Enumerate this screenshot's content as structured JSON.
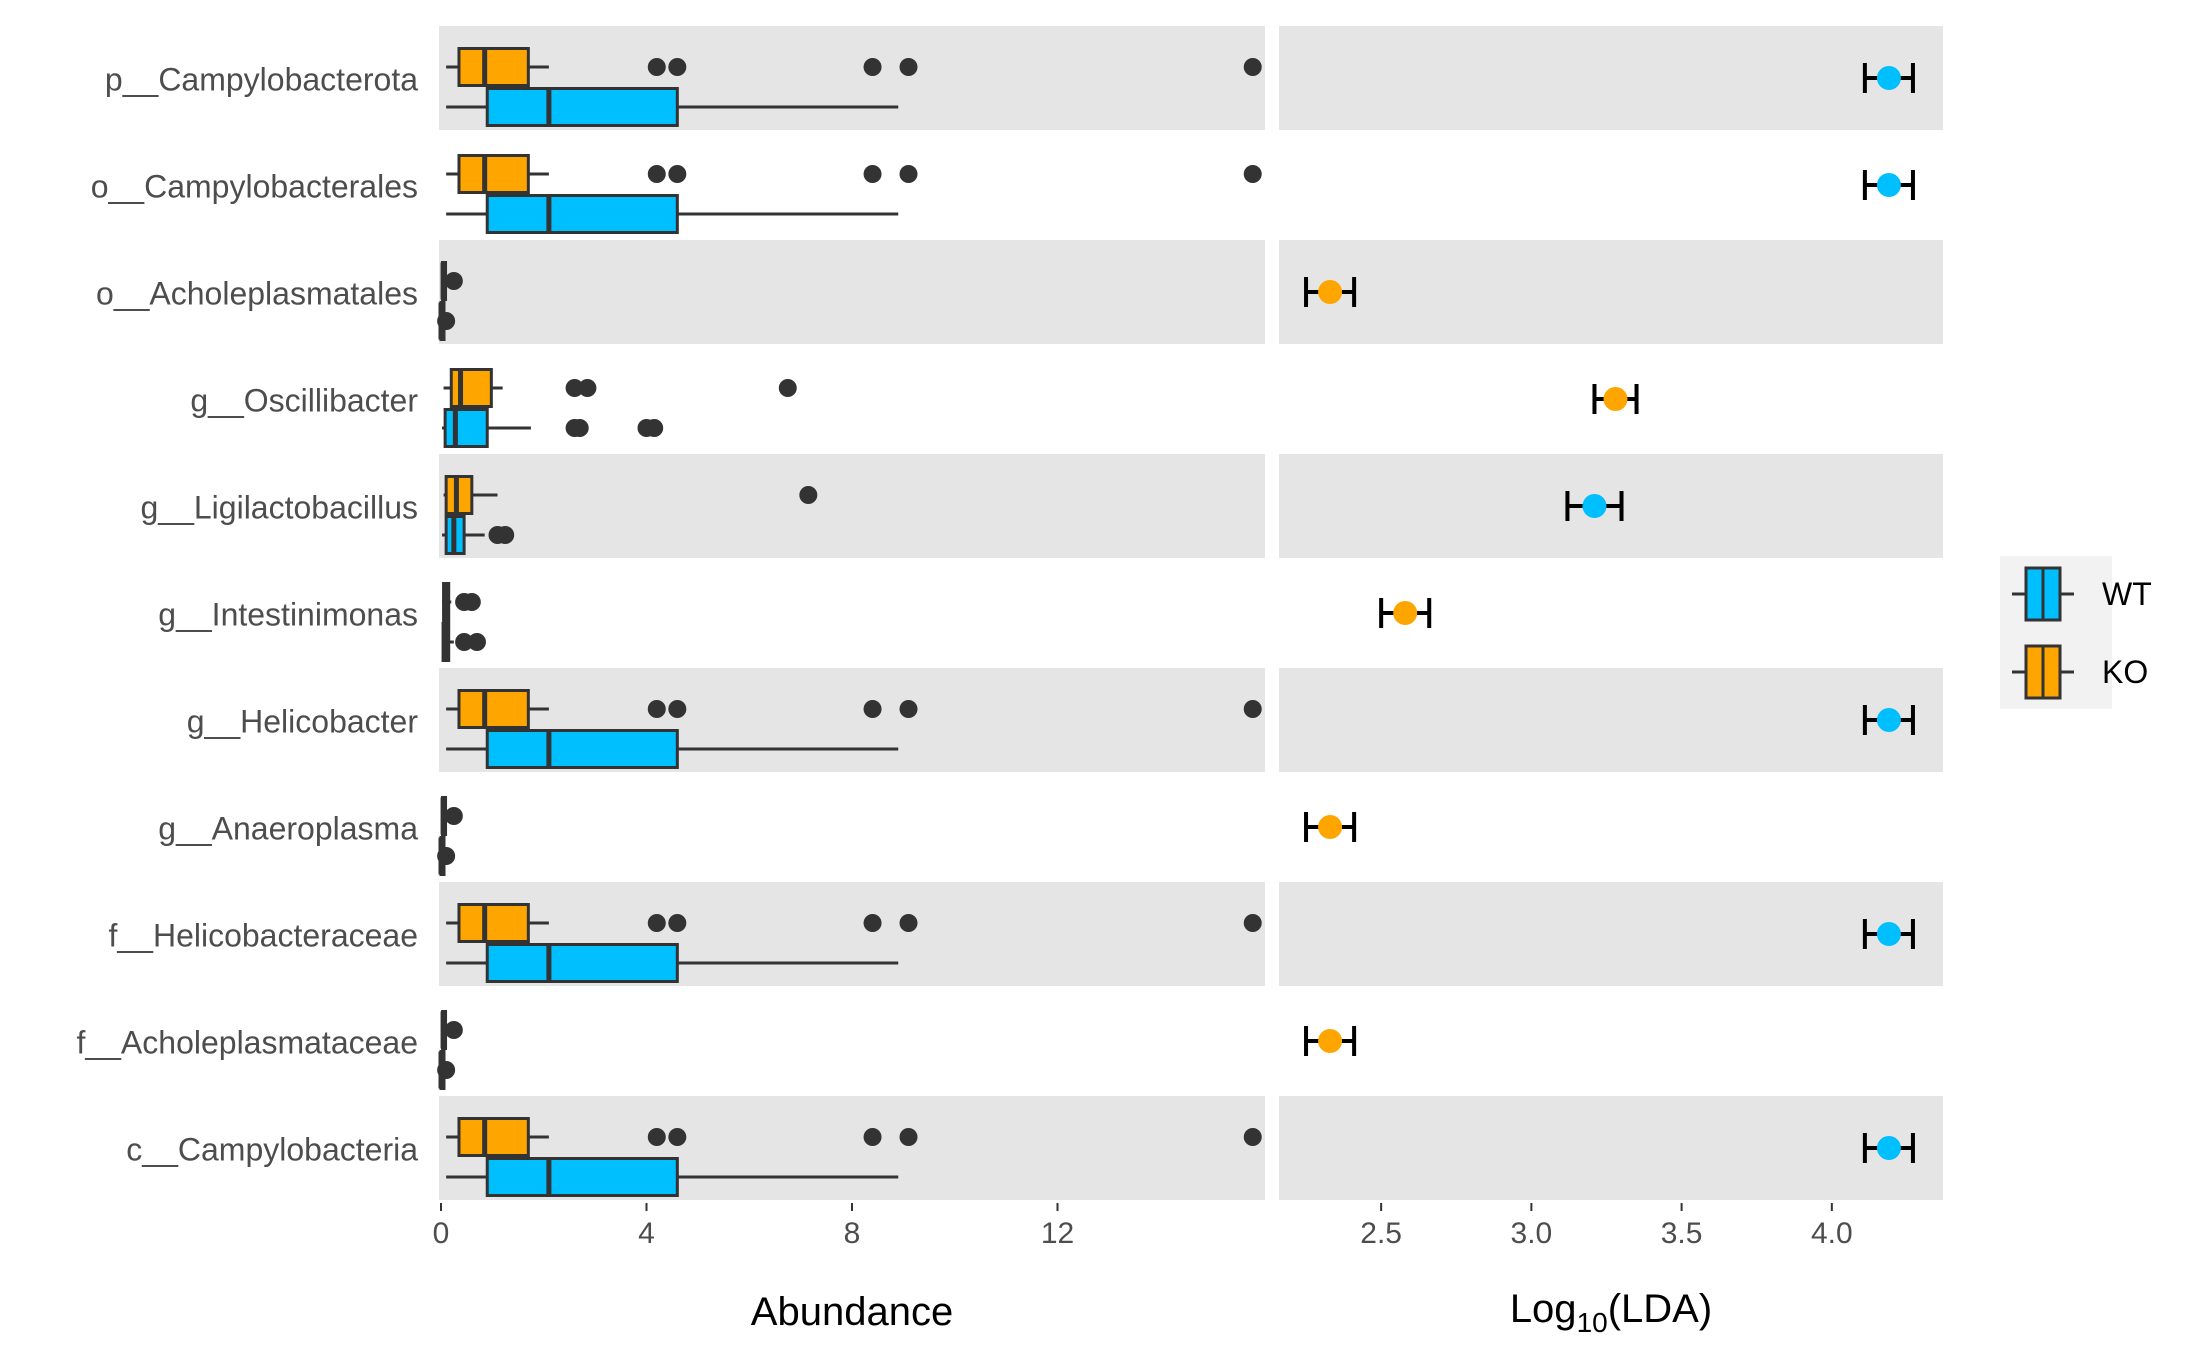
{
  "colors": {
    "WT": "#00BFFF",
    "KO": "#FFA500",
    "panel_band": "#E5E5E5",
    "outline": "#333333",
    "outlier": "#333333",
    "errorbar": "#000000"
  },
  "chart_data": [
    {
      "type": "boxplot",
      "panel": "left",
      "xlabel": "Abundance",
      "xlim": [
        0,
        16
      ],
      "xticks": [
        0,
        4,
        8,
        12
      ],
      "categories": [
        "p__Campylobacterota",
        "o__Campylobacterales",
        "o__Acholeplasmatales",
        "g__Oscillibacter",
        "g__Ligilactobacillus",
        "g__Intestinimonas",
        "g__Helicobacter",
        "g__Anaeroplasma",
        "f__Helicobacteraceae",
        "f__Acholeplasmataceae",
        "c__Campylobacteria"
      ],
      "series": [
        {
          "name": "KO",
          "boxes": [
            {
              "wlo": 0.1,
              "q1": 0.35,
              "med": 0.85,
              "q3": 1.7,
              "whi": 2.1,
              "outliers": [
                4.2,
                4.6,
                8.4,
                9.1,
                15.8
              ]
            },
            {
              "wlo": 0.1,
              "q1": 0.35,
              "med": 0.85,
              "q3": 1.7,
              "whi": 2.1,
              "outliers": [
                4.2,
                4.6,
                8.4,
                9.1,
                15.8
              ]
            },
            {
              "wlo": 0.02,
              "q1": 0.03,
              "med": 0.04,
              "q3": 0.05,
              "whi": 0.06,
              "outliers": [
                0.25
              ]
            },
            {
              "wlo": 0.05,
              "q1": 0.2,
              "med": 0.38,
              "q3": 0.98,
              "whi": 1.2,
              "outliers": [
                2.6,
                2.85,
                6.75
              ]
            },
            {
              "wlo": 0.05,
              "q1": 0.1,
              "med": 0.3,
              "q3": 0.6,
              "whi": 1.1,
              "outliers": [
                7.15
              ]
            },
            {
              "wlo": 0.02,
              "q1": 0.05,
              "med": 0.1,
              "q3": 0.15,
              "whi": 0.2,
              "outliers": [
                0.45,
                0.6
              ]
            },
            {
              "wlo": 0.1,
              "q1": 0.35,
              "med": 0.85,
              "q3": 1.7,
              "whi": 2.1,
              "outliers": [
                4.2,
                4.6,
                8.4,
                9.1,
                15.8
              ]
            },
            {
              "wlo": 0.02,
              "q1": 0.03,
              "med": 0.04,
              "q3": 0.05,
              "whi": 0.06,
              "outliers": [
                0.25
              ]
            },
            {
              "wlo": 0.1,
              "q1": 0.35,
              "med": 0.85,
              "q3": 1.7,
              "whi": 2.1,
              "outliers": [
                4.2,
                4.6,
                8.4,
                9.1,
                15.8
              ]
            },
            {
              "wlo": 0.02,
              "q1": 0.03,
              "med": 0.04,
              "q3": 0.05,
              "whi": 0.06,
              "outliers": [
                0.25
              ]
            },
            {
              "wlo": 0.1,
              "q1": 0.35,
              "med": 0.85,
              "q3": 1.7,
              "whi": 2.1,
              "outliers": [
                4.2,
                4.6,
                8.4,
                9.1,
                15.8
              ]
            }
          ]
        },
        {
          "name": "WT",
          "boxes": [
            {
              "wlo": 0.1,
              "q1": 0.9,
              "med": 2.1,
              "q3": 4.6,
              "whi": 8.9,
              "outliers": []
            },
            {
              "wlo": 0.1,
              "q1": 0.9,
              "med": 2.1,
              "q3": 4.6,
              "whi": 8.9,
              "outliers": []
            },
            {
              "wlo": 0.0,
              "q1": 0.0,
              "med": 0.0,
              "q3": 0.01,
              "whi": 0.02,
              "outliers": [
                0.1
              ]
            },
            {
              "wlo": 0.02,
              "q1": 0.08,
              "med": 0.28,
              "q3": 0.9,
              "whi": 1.75,
              "outliers": [
                2.6,
                2.7,
                4.0,
                4.15
              ]
            },
            {
              "wlo": 0.02,
              "q1": 0.1,
              "med": 0.25,
              "q3": 0.45,
              "whi": 0.85,
              "outliers": [
                1.1,
                1.25
              ]
            },
            {
              "wlo": 0.02,
              "q1": 0.04,
              "med": 0.08,
              "q3": 0.15,
              "whi": 0.25,
              "outliers": [
                0.45,
                0.7
              ]
            },
            {
              "wlo": 0.1,
              "q1": 0.9,
              "med": 2.1,
              "q3": 4.6,
              "whi": 8.9,
              "outliers": []
            },
            {
              "wlo": 0.0,
              "q1": 0.0,
              "med": 0.0,
              "q3": 0.01,
              "whi": 0.02,
              "outliers": [
                0.1
              ]
            },
            {
              "wlo": 0.1,
              "q1": 0.9,
              "med": 2.1,
              "q3": 4.6,
              "whi": 8.9,
              "outliers": []
            },
            {
              "wlo": 0.0,
              "q1": 0.0,
              "med": 0.0,
              "q3": 0.01,
              "whi": 0.02,
              "outliers": [
                0.1
              ]
            },
            {
              "wlo": 0.1,
              "q1": 0.9,
              "med": 2.1,
              "q3": 4.6,
              "whi": 8.9,
              "outliers": []
            }
          ]
        }
      ]
    },
    {
      "type": "errorbar-point",
      "panel": "right",
      "xlabel_base": "Log",
      "xlabel_sub": "10",
      "xlabel_rest": "(LDA)",
      "xlim": [
        2.16,
        4.37
      ],
      "xticks": [
        "2.5",
        "3.0",
        "3.5",
        "4.0"
      ],
      "categories": [
        "p__Campylobacterota",
        "o__Campylobacterales",
        "o__Acholeplasmatales",
        "g__Oscillibacter",
        "g__Ligilactobacillus",
        "g__Intestinimonas",
        "g__Helicobacter",
        "g__Anaeroplasma",
        "f__Helicobacteraceae",
        "f__Acholeplasmataceae",
        "c__Campylobacteria"
      ],
      "points": [
        {
          "group": "WT",
          "value": 4.19,
          "lo": 4.11,
          "hi": 4.27
        },
        {
          "group": "WT",
          "value": 4.19,
          "lo": 4.11,
          "hi": 4.27
        },
        {
          "group": "KO",
          "value": 2.33,
          "lo": 2.25,
          "hi": 2.41
        },
        {
          "group": "KO",
          "value": 3.28,
          "lo": 3.21,
          "hi": 3.35
        },
        {
          "group": "WT",
          "value": 3.21,
          "lo": 3.12,
          "hi": 3.3
        },
        {
          "group": "KO",
          "value": 2.58,
          "lo": 2.5,
          "hi": 2.66
        },
        {
          "group": "WT",
          "value": 4.19,
          "lo": 4.11,
          "hi": 4.27
        },
        {
          "group": "KO",
          "value": 2.33,
          "lo": 2.25,
          "hi": 2.41
        },
        {
          "group": "WT",
          "value": 4.19,
          "lo": 4.11,
          "hi": 4.27
        },
        {
          "group": "KO",
          "value": 2.33,
          "lo": 2.25,
          "hi": 2.41
        },
        {
          "group": "WT",
          "value": 4.19,
          "lo": 4.11,
          "hi": 4.27
        }
      ]
    }
  ],
  "legend": {
    "position": "right",
    "items": [
      {
        "label": "WT",
        "color": "#00BFFF"
      },
      {
        "label": "KO",
        "color": "#FFA500"
      }
    ]
  }
}
